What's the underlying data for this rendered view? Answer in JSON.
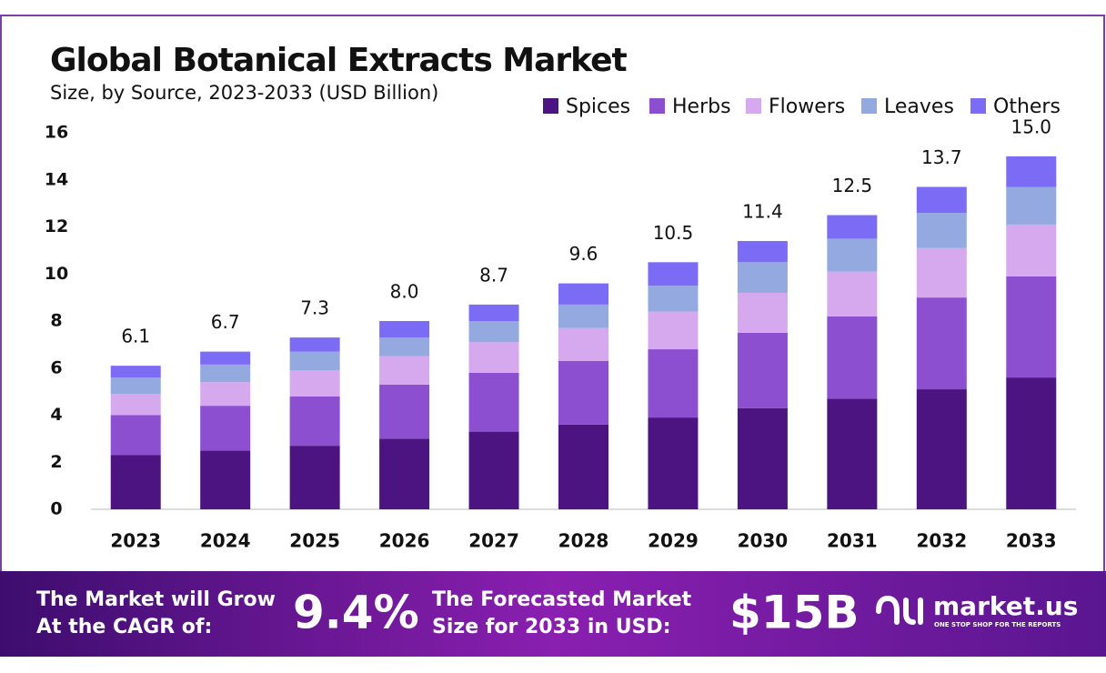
{
  "chart_data": {
    "type": "stacked_bar",
    "title": "Global Botanical Extracts Market",
    "subtitle": "Size, by Source, 2023-2033 (USD Billion)",
    "categories": [
      "2023",
      "2024",
      "2025",
      "2026",
      "2027",
      "2028",
      "2029",
      "2030",
      "2031",
      "2032",
      "2033"
    ],
    "series": [
      {
        "name": "Spices",
        "color": "#4b1480",
        "values": [
          2.3,
          2.5,
          2.7,
          3.0,
          3.3,
          3.6,
          3.9,
          4.3,
          4.7,
          5.1,
          5.6
        ]
      },
      {
        "name": "Herbs",
        "color": "#8b4fd0",
        "values": [
          1.7,
          1.9,
          2.1,
          2.3,
          2.5,
          2.7,
          2.9,
          3.2,
          3.5,
          3.9,
          4.3
        ]
      },
      {
        "name": "Flowers",
        "color": "#d6a8ee",
        "values": [
          0.9,
          1.0,
          1.1,
          1.2,
          1.3,
          1.4,
          1.6,
          1.7,
          1.9,
          2.1,
          2.2
        ]
      },
      {
        "name": "Leaves",
        "color": "#94a9e0",
        "values": [
          0.7,
          0.75,
          0.8,
          0.8,
          0.9,
          1.0,
          1.1,
          1.3,
          1.4,
          1.5,
          1.6
        ]
      },
      {
        "name": "Others",
        "color": "#7b6bf5",
        "values": [
          0.5,
          0.55,
          0.6,
          0.7,
          0.7,
          0.9,
          1.0,
          0.9,
          1.0,
          1.1,
          1.3
        ]
      }
    ],
    "totals": [
      6.1,
      6.7,
      7.3,
      8.0,
      8.7,
      9.6,
      10.5,
      11.4,
      12.5,
      13.7,
      15.0
    ],
    "total_labels": [
      "6.1",
      "6.7",
      "7.3",
      "8.0",
      "8.7",
      "9.6",
      "10.5",
      "11.4",
      "12.5",
      "13.7",
      "15.0"
    ],
    "ylim": [
      0,
      16
    ],
    "yticks": [
      0,
      2,
      4,
      6,
      8,
      10,
      12,
      14,
      16
    ],
    "grid": false,
    "legend": "top-right"
  },
  "footer": {
    "cagr_text": [
      "The Market will Grow",
      "At the CAGR of:"
    ],
    "cagr_value": "9.4%",
    "forecast_text": [
      "The Forecasted Market",
      "Size for 2033 in USD:"
    ],
    "forecast_value": "$15B",
    "brand": "market.us",
    "tagline": "ONE STOP SHOP FOR THE REPORTS"
  }
}
